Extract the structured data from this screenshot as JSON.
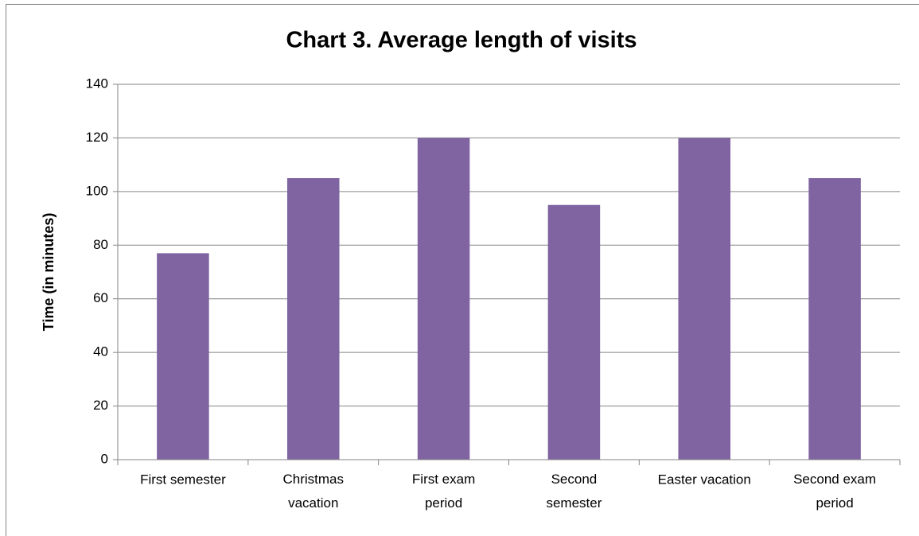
{
  "chart_data": {
    "type": "bar",
    "title": "Chart 3. Average length of visits",
    "y_label": "Time (in minutes)",
    "categories": [
      "First semester",
      "Christmas vacation",
      "First exam period",
      "Second semester",
      "Easter vacation",
      "Second exam period"
    ],
    "values": [
      77,
      105,
      120,
      95,
      120,
      105
    ],
    "color": "#8064a2",
    "ylim": [
      0,
      140
    ],
    "yticks": [
      0,
      20,
      40,
      60,
      80,
      100,
      120,
      140
    ],
    "grid": true
  }
}
